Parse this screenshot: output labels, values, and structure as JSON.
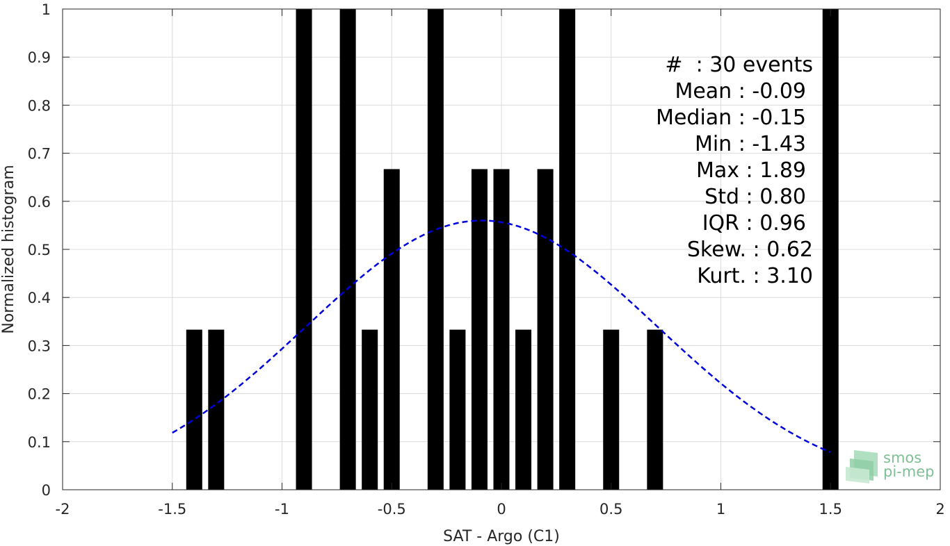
{
  "chart_data": {
    "type": "bar",
    "xlabel": "SAT - Argo (C1)",
    "ylabel": "Normalized histogram",
    "xlim": [
      -2,
      2
    ],
    "ylim": [
      0,
      1
    ],
    "grid": true,
    "xticks": [
      "-2",
      "-1.5",
      "-1",
      "-0.5",
      "0",
      "0.5",
      "1",
      "1.5",
      "2"
    ],
    "yticks": [
      "0",
      "0.1",
      "0.2",
      "0.3",
      "0.4",
      "0.5",
      "0.6",
      "0.7",
      "0.8",
      "0.9",
      "1"
    ],
    "bar_color": "#000000",
    "bars": [
      {
        "x": -1.4,
        "value": 0.333
      },
      {
        "x": -1.3,
        "value": 0.333
      },
      {
        "x": -0.9,
        "value": 1.0
      },
      {
        "x": -0.7,
        "value": 1.0
      },
      {
        "x": -0.6,
        "value": 0.333
      },
      {
        "x": -0.5,
        "value": 0.667
      },
      {
        "x": -0.3,
        "value": 1.0
      },
      {
        "x": -0.2,
        "value": 0.333
      },
      {
        "x": -0.1,
        "value": 0.667
      },
      {
        "x": 0.0,
        "value": 0.667
      },
      {
        "x": 0.1,
        "value": 0.333
      },
      {
        "x": 0.2,
        "value": 0.667
      },
      {
        "x": 0.3,
        "value": 1.0
      },
      {
        "x": 0.5,
        "value": 0.333
      },
      {
        "x": 0.7,
        "value": 0.333
      },
      {
        "x": 1.5,
        "value": 1.0
      }
    ],
    "fit_curve": {
      "style": "dashed",
      "color": "#0000dd",
      "type": "gaussian",
      "mean": -0.09,
      "std": 0.8,
      "peak": 0.56,
      "x_range": [
        -1.5,
        1.5
      ]
    },
    "annotations": [
      "#  : 30 events",
      "Mean : -0.09",
      "Median : -0.15",
      "Min : -1.43",
      "Max : 1.89",
      "Std : 0.80",
      "IQR : 0.96",
      "Skew. : 0.62",
      "Kurt. : 3.10"
    ]
  },
  "logo": {
    "line1": "smos",
    "line2": "pi-mep",
    "color": "#7fbf95"
  }
}
